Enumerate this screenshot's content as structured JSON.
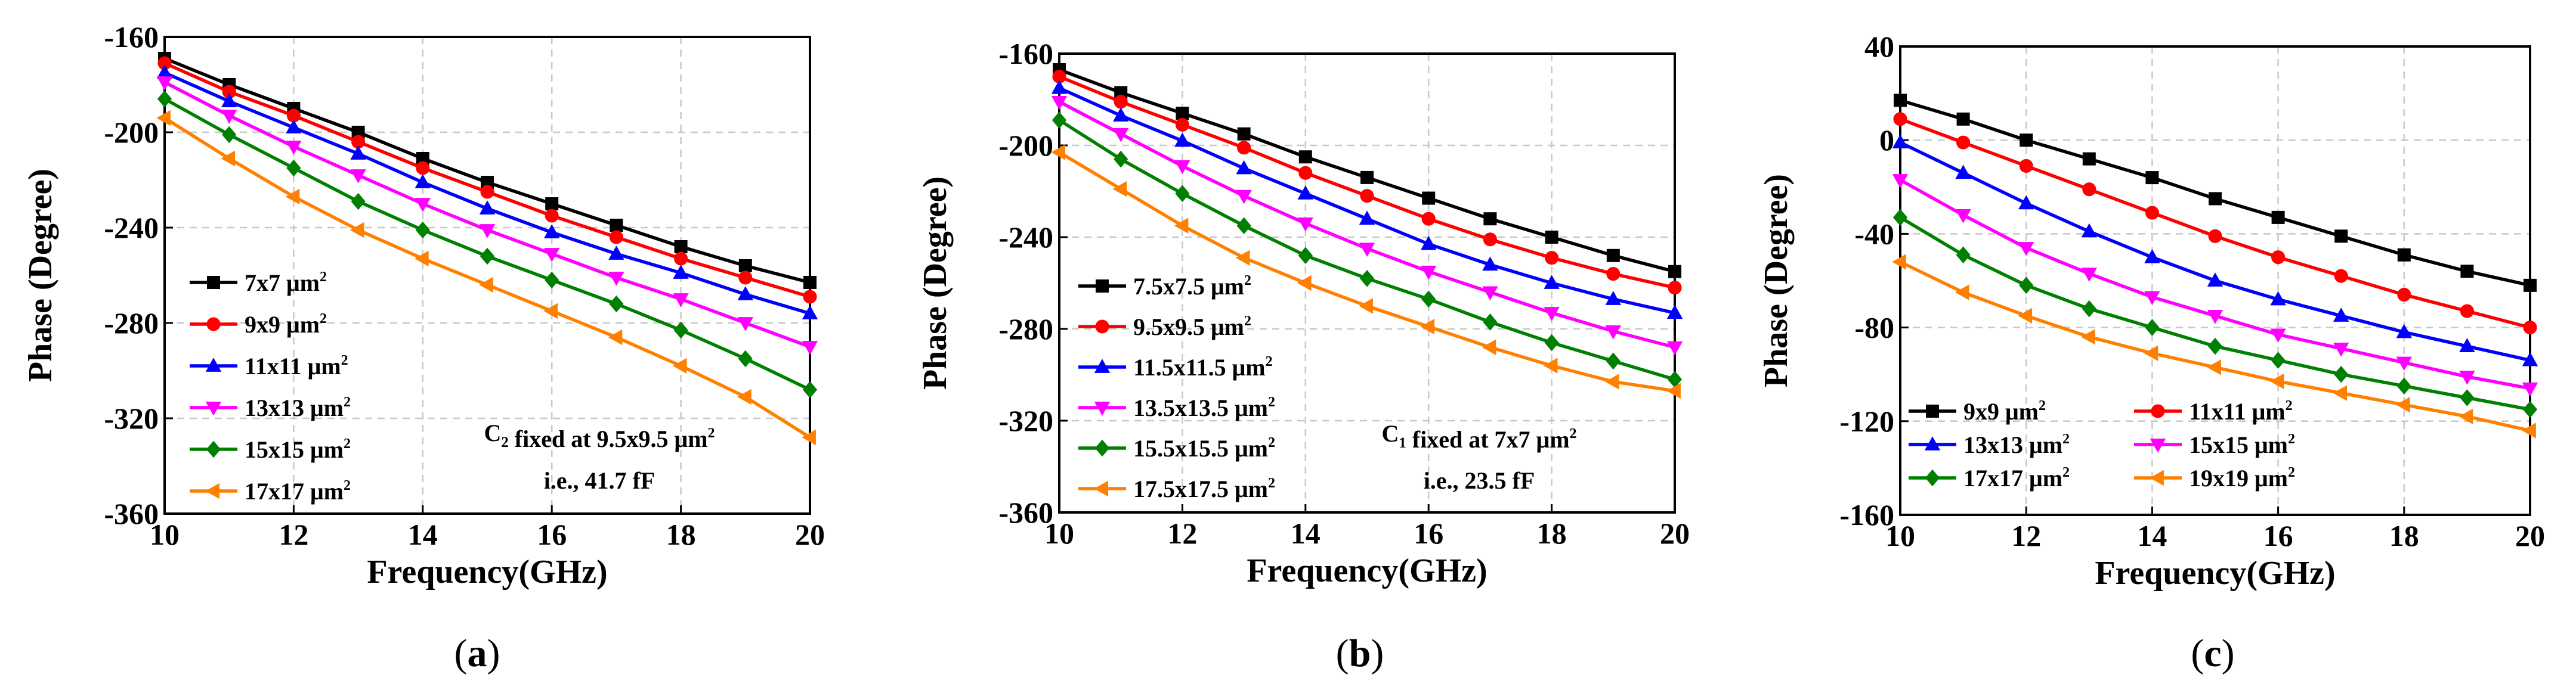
{
  "chart_data": [
    {
      "type": "line",
      "panel_label": "(a)",
      "xlabel": "Frequency(GHz)",
      "ylabel": "Phase (Degree)",
      "xlim": [
        10,
        20
      ],
      "ylim": [
        -360,
        -160
      ],
      "xticks": [
        10,
        12,
        14,
        16,
        18,
        20
      ],
      "yticks": [
        -160,
        -200,
        -240,
        -280,
        -320,
        -360
      ],
      "grid": true,
      "legend": "bottom-left",
      "annotation": [
        "C2 fixed at 9.5x9.5 μm²",
        "i.e., 41.7 fF"
      ],
      "x": [
        10,
        11,
        12,
        13,
        14,
        15,
        16,
        17,
        18,
        19,
        20
      ],
      "series": [
        {
          "name": "7x7 μm²",
          "color": "#000000",
          "marker": "square",
          "values": [
            -169,
            -180,
            -190,
            -200,
            -211,
            -221,
            -230,
            -239,
            -248,
            -256,
            -263
          ]
        },
        {
          "name": "9x9 μm²",
          "color": "#ff0000",
          "marker": "circle",
          "values": [
            -171,
            -183,
            -193,
            -204,
            -215,
            -225,
            -235,
            -244,
            -253,
            -261,
            -269
          ]
        },
        {
          "name": "11x11 μm²",
          "color": "#0000ff",
          "marker": "triangle-up",
          "values": [
            -175,
            -187,
            -198,
            -209,
            -221,
            -232,
            -242,
            -251,
            -259,
            -268,
            -276
          ]
        },
        {
          "name": "13x13 μm²",
          "color": "#ff00ff",
          "marker": "triangle-down",
          "values": [
            -179,
            -193,
            -206,
            -218,
            -230,
            -241,
            -251,
            -261,
            -270,
            -280,
            -290
          ]
        },
        {
          "name": "15x15 μm²",
          "color": "#008000",
          "marker": "diamond",
          "values": [
            -186,
            -201,
            -215,
            -229,
            -241,
            -252,
            -262,
            -272,
            -283,
            -295,
            -308
          ]
        },
        {
          "name": "17x17 μm²",
          "color": "#ff8000",
          "marker": "triangle-left",
          "values": [
            -194,
            -211,
            -227,
            -241,
            -253,
            -264,
            -275,
            -286,
            -298,
            -311,
            -328
          ]
        }
      ]
    },
    {
      "type": "line",
      "panel_label": "(b)",
      "xlabel": "Frequency(GHz)",
      "ylabel": "Phase (Degree)",
      "xlim": [
        10,
        20
      ],
      "ylim": [
        -360,
        -160
      ],
      "xticks": [
        10,
        12,
        14,
        16,
        18,
        20
      ],
      "yticks": [
        -160,
        -200,
        -240,
        -280,
        -320,
        -360
      ],
      "grid": true,
      "legend": "bottom-left",
      "annotation": [
        "C1 fixed at 7x7 μm²",
        "i.e., 23.5 fF"
      ],
      "x": [
        10,
        11,
        12,
        13,
        14,
        15,
        16,
        17,
        18,
        19,
        20
      ],
      "series": [
        {
          "name": "7.5x7.5 μm²",
          "color": "#000000",
          "marker": "square",
          "values": [
            -167,
            -177,
            -186,
            -195,
            -205,
            -214,
            -223,
            -232,
            -240,
            -248,
            -255
          ]
        },
        {
          "name": "9.5x9.5 μm²",
          "color": "#ff0000",
          "marker": "circle",
          "values": [
            -170,
            -181,
            -191,
            -201,
            -212,
            -222,
            -232,
            -241,
            -249,
            -256,
            -262
          ]
        },
        {
          "name": "11.5x11.5 μm²",
          "color": "#0000ff",
          "marker": "triangle-up",
          "values": [
            -175,
            -187,
            -198,
            -210,
            -221,
            -232,
            -243,
            -252,
            -260,
            -267,
            -273
          ]
        },
        {
          "name": "13.5x13.5 μm²",
          "color": "#ff00ff",
          "marker": "triangle-down",
          "values": [
            -181,
            -195,
            -209,
            -222,
            -234,
            -245,
            -255,
            -264,
            -273,
            -281,
            -288
          ]
        },
        {
          "name": "15.5x15.5 μm²",
          "color": "#008000",
          "marker": "diamond",
          "values": [
            -189,
            -206,
            -221,
            -235,
            -248,
            -258,
            -267,
            -277,
            -286,
            -294,
            -302
          ]
        },
        {
          "name": "17.5x17.5 μm²",
          "color": "#ff8000",
          "marker": "triangle-left",
          "values": [
            -203,
            -219,
            -235,
            -249,
            -260,
            -270,
            -279,
            -288,
            -296,
            -303,
            -307
          ]
        }
      ]
    },
    {
      "type": "line",
      "panel_label": "(c)",
      "xlabel": "Frequency(GHz)",
      "ylabel": "Phase (Degree)",
      "xlim": [
        10,
        20
      ],
      "ylim": [
        -160,
        40
      ],
      "xticks": [
        10,
        12,
        14,
        16,
        18,
        20
      ],
      "yticks": [
        40,
        0,
        -40,
        -80,
        -120,
        -160
      ],
      "grid": true,
      "legend": "bottom-left",
      "x": [
        10,
        11,
        12,
        13,
        14,
        15,
        16,
        17,
        18,
        19,
        20
      ],
      "series": [
        {
          "name": "9x9 μm²",
          "color": "#000000",
          "marker": "square",
          "values": [
            17,
            9,
            0,
            -8,
            -16,
            -25,
            -33,
            -41,
            -49,
            -56,
            -62
          ]
        },
        {
          "name": "11x11 μm²",
          "color": "#ff0000",
          "marker": "circle",
          "values": [
            9,
            -1,
            -11,
            -21,
            -31,
            -41,
            -50,
            -58,
            -66,
            -73,
            -80
          ]
        },
        {
          "name": "13x13 μm²",
          "color": "#0000ff",
          "marker": "triangle-up",
          "values": [
            -1,
            -14,
            -27,
            -39,
            -50,
            -60,
            -68,
            -75,
            -82,
            -88,
            -94
          ]
        },
        {
          "name": "15x15 μm²",
          "color": "#ff00ff",
          "marker": "triangle-down",
          "values": [
            -17,
            -32,
            -46,
            -57,
            -67,
            -75,
            -83,
            -89,
            -95,
            -101,
            -106
          ]
        },
        {
          "name": "17x17 μm²",
          "color": "#008000",
          "marker": "diamond",
          "values": [
            -33,
            -49,
            -62,
            -72,
            -80,
            -88,
            -94,
            -100,
            -105,
            -110,
            -115
          ]
        },
        {
          "name": "19x19 μm²",
          "color": "#ff8000",
          "marker": "triangle-left",
          "values": [
            -52,
            -65,
            -75,
            -84,
            -91,
            -97,
            -103,
            -108,
            -113,
            -118,
            -124
          ]
        }
      ]
    }
  ]
}
